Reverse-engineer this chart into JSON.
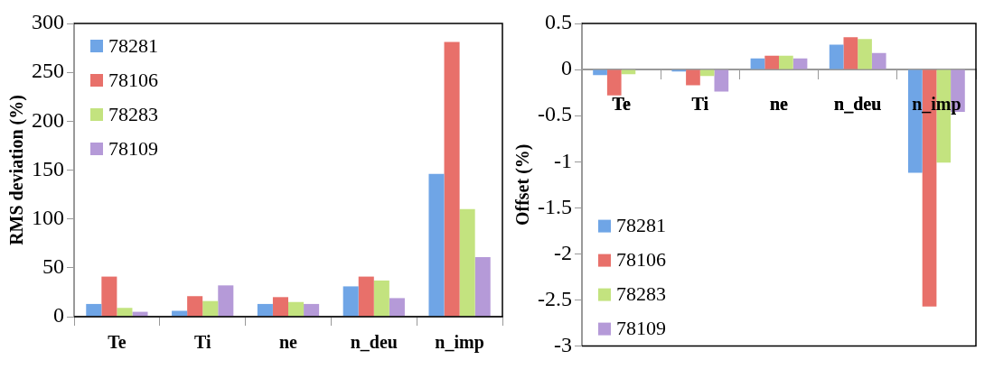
{
  "chart_data": [
    {
      "type": "bar",
      "ylabel": "RMS deviation (%)",
      "categories": [
        "Te",
        "Ti",
        "ne",
        "n_deu",
        "n_imp"
      ],
      "series": [
        {
          "name": "78281",
          "color": "#6fa5e6",
          "values": [
            13,
            6,
            13,
            31,
            146
          ]
        },
        {
          "name": "78106",
          "color": "#e8706a",
          "values": [
            41,
            21,
            20,
            41,
            281
          ]
        },
        {
          "name": "78283",
          "color": "#c3e37f",
          "values": [
            9,
            16,
            15,
            37,
            110
          ]
        },
        {
          "name": "78109",
          "color": "#b59ad8",
          "values": [
            5,
            32,
            13,
            19,
            61
          ]
        }
      ],
      "ylim": [
        0,
        300
      ],
      "yticks": [
        0,
        50,
        100,
        150,
        200,
        250,
        300
      ],
      "legend": "top left"
    },
    {
      "type": "bar",
      "ylabel": "Offset (%)",
      "categories": [
        "Te",
        "Ti",
        "ne",
        "n_deu",
        "n_imp"
      ],
      "series": [
        {
          "name": "78281",
          "color": "#6fa5e6",
          "values": [
            -0.06,
            -0.02,
            0.12,
            0.27,
            -1.12
          ]
        },
        {
          "name": "78106",
          "color": "#e8706a",
          "values": [
            -0.28,
            -0.17,
            0.15,
            0.35,
            -2.57
          ]
        },
        {
          "name": "78283",
          "color": "#c3e37f",
          "values": [
            -0.05,
            -0.07,
            0.15,
            0.33,
            -1.01
          ]
        },
        {
          "name": "78109",
          "color": "#b59ad8",
          "values": [
            0,
            -0.24,
            0.12,
            0.18,
            -0.46
          ]
        }
      ],
      "ylim": [
        -3,
        0.5
      ],
      "yticks": [
        0.5,
        0,
        -0.5,
        -1,
        -1.5,
        -2,
        -2.5,
        -3
      ],
      "legend": "bottom left"
    }
  ]
}
